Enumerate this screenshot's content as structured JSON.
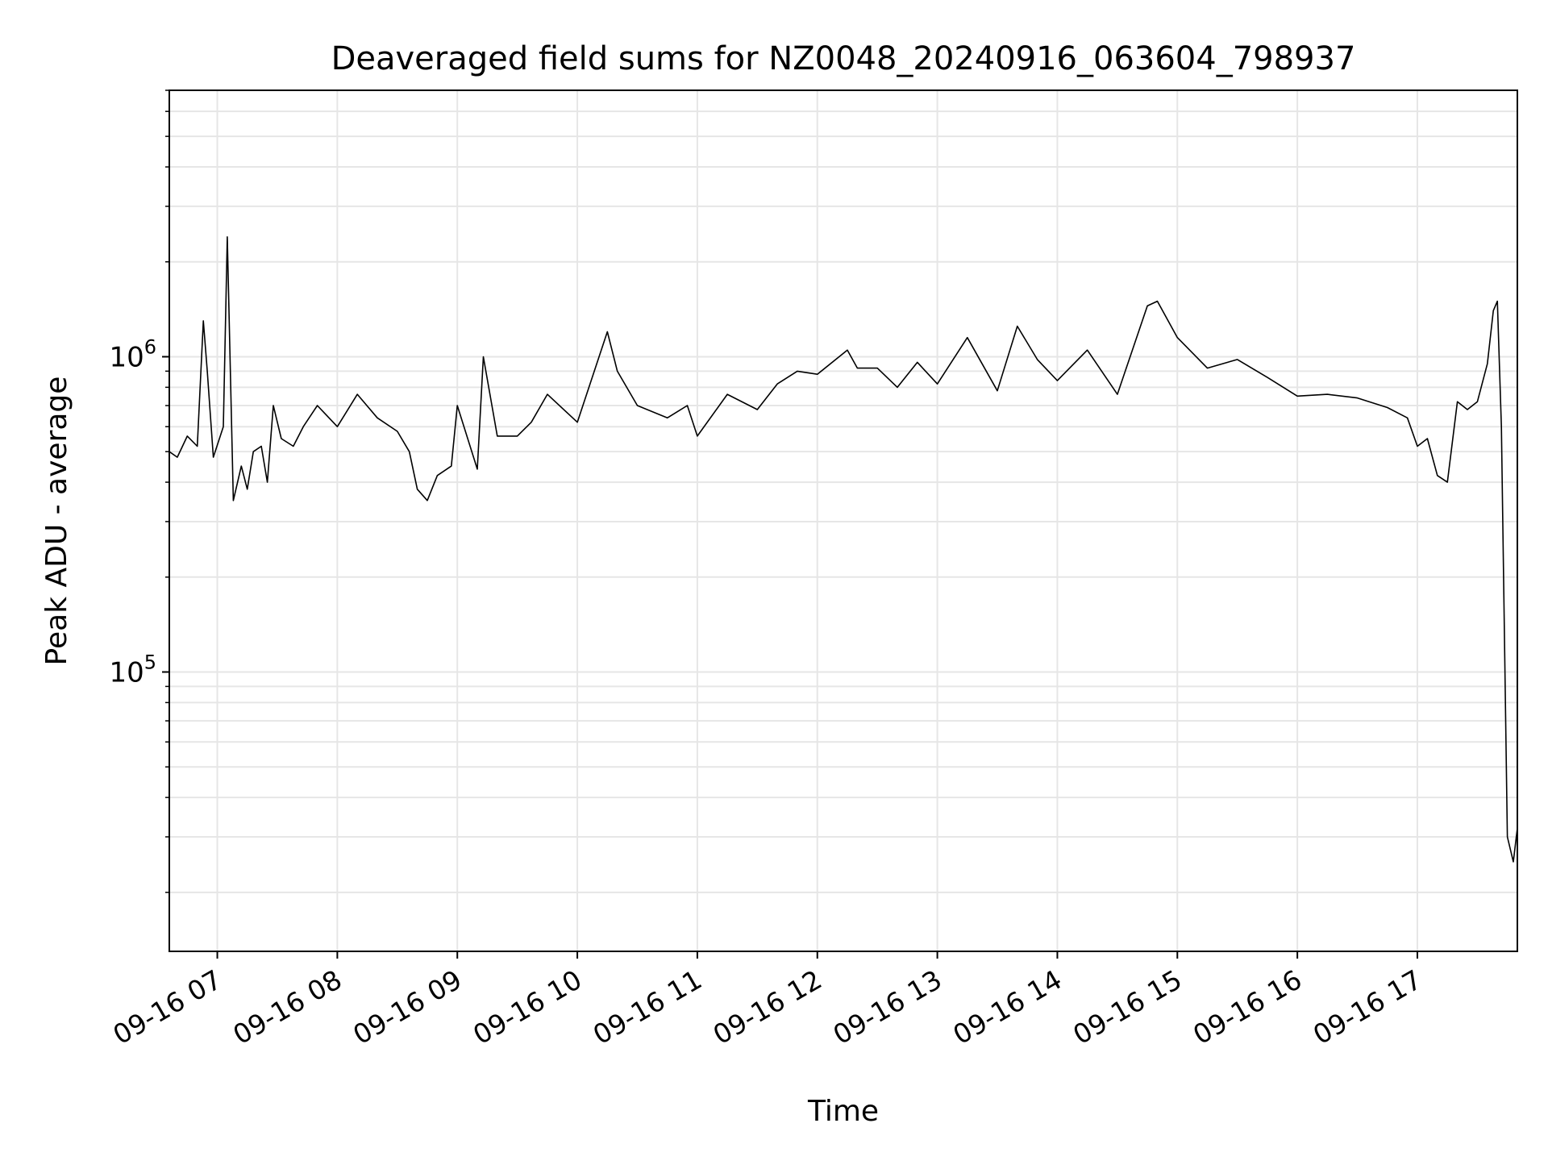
{
  "chart_data": {
    "type": "line",
    "title": "Deaveraged field sums for NZ0048_20240916_063604_798937",
    "xlabel": "Time",
    "ylabel": "Peak ADU - average",
    "yscale": "log",
    "xlim": [
      "2024-09-16 06:36",
      "2024-09-16 17:50"
    ],
    "ylim": [
      13000,
      7000000
    ],
    "xticks": [
      {
        "t": "2024-09-16 07:00",
        "label": "09-16 07"
      },
      {
        "t": "2024-09-16 08:00",
        "label": "09-16 08"
      },
      {
        "t": "2024-09-16 09:00",
        "label": "09-16 09"
      },
      {
        "t": "2024-09-16 10:00",
        "label": "09-16 10"
      },
      {
        "t": "2024-09-16 11:00",
        "label": "09-16 11"
      },
      {
        "t": "2024-09-16 12:00",
        "label": "09-16 12"
      },
      {
        "t": "2024-09-16 13:00",
        "label": "09-16 13"
      },
      {
        "t": "2024-09-16 14:00",
        "label": "09-16 14"
      },
      {
        "t": "2024-09-16 15:00",
        "label": "09-16 15"
      },
      {
        "t": "2024-09-16 16:00",
        "label": "09-16 16"
      },
      {
        "t": "2024-09-16 17:00",
        "label": "09-16 17"
      }
    ],
    "yticks": [
      {
        "value": 100000,
        "base": "10",
        "exp": "5"
      },
      {
        "value": 1000000,
        "base": "10",
        "exp": "6"
      }
    ],
    "grid": true,
    "minor_grid": true,
    "line_color": "#000000",
    "grid_color": "#e6e6e6",
    "series": [
      {
        "x": [
          "2024-09-16 06:36",
          "2024-09-16 06:40",
          "2024-09-16 06:45",
          "2024-09-16 06:50",
          "2024-09-16 06:53",
          "2024-09-16 06:55",
          "2024-09-16 06:58",
          "2024-09-16 07:03",
          "2024-09-16 07:05",
          "2024-09-16 07:08",
          "2024-09-16 07:12",
          "2024-09-16 07:15",
          "2024-09-16 07:18",
          "2024-09-16 07:22",
          "2024-09-16 07:25",
          "2024-09-16 07:28",
          "2024-09-16 07:32",
          "2024-09-16 07:38",
          "2024-09-16 07:43",
          "2024-09-16 07:50",
          "2024-09-16 08:00",
          "2024-09-16 08:10",
          "2024-09-16 08:20",
          "2024-09-16 08:30",
          "2024-09-16 08:36",
          "2024-09-16 08:40",
          "2024-09-16 08:45",
          "2024-09-16 08:50",
          "2024-09-16 08:57",
          "2024-09-16 09:00",
          "2024-09-16 09:10",
          "2024-09-16 09:13",
          "2024-09-16 09:20",
          "2024-09-16 09:30",
          "2024-09-16 09:37",
          "2024-09-16 09:45",
          "2024-09-16 10:00",
          "2024-09-16 10:15",
          "2024-09-16 10:20",
          "2024-09-16 10:30",
          "2024-09-16 10:45",
          "2024-09-16 10:55",
          "2024-09-16 11:00",
          "2024-09-16 11:15",
          "2024-09-16 11:30",
          "2024-09-16 11:40",
          "2024-09-16 11:50",
          "2024-09-16 12:00",
          "2024-09-16 12:15",
          "2024-09-16 12:20",
          "2024-09-16 12:30",
          "2024-09-16 12:40",
          "2024-09-16 12:50",
          "2024-09-16 13:00",
          "2024-09-16 13:15",
          "2024-09-16 13:30",
          "2024-09-16 13:40",
          "2024-09-16 13:50",
          "2024-09-16 14:00",
          "2024-09-16 14:15",
          "2024-09-16 14:30",
          "2024-09-16 14:45",
          "2024-09-16 14:50",
          "2024-09-16 15:00",
          "2024-09-16 15:15",
          "2024-09-16 15:30",
          "2024-09-16 15:45",
          "2024-09-16 16:00",
          "2024-09-16 16:15",
          "2024-09-16 16:30",
          "2024-09-16 16:45",
          "2024-09-16 16:55",
          "2024-09-16 17:00",
          "2024-09-16 17:05",
          "2024-09-16 17:10",
          "2024-09-16 17:15",
          "2024-09-16 17:20",
          "2024-09-16 17:25",
          "2024-09-16 17:30",
          "2024-09-16 17:35",
          "2024-09-16 17:38",
          "2024-09-16 17:40",
          "2024-09-16 17:42",
          "2024-09-16 17:45",
          "2024-09-16 17:48",
          "2024-09-16 17:50"
        ],
        "y": [
          500000,
          480000,
          560000,
          520000,
          1300000,
          900000,
          480000,
          600000,
          2400000,
          350000,
          450000,
          380000,
          500000,
          520000,
          400000,
          700000,
          550000,
          520000,
          600000,
          700000,
          600000,
          760000,
          640000,
          580000,
          500000,
          380000,
          350000,
          420000,
          450000,
          700000,
          440000,
          1000000,
          560000,
          560000,
          620000,
          760000,
          620000,
          1200000,
          900000,
          700000,
          640000,
          700000,
          560000,
          760000,
          680000,
          820000,
          900000,
          880000,
          1050000,
          920000,
          920000,
          800000,
          960000,
          820000,
          1150000,
          780000,
          1250000,
          980000,
          840000,
          1050000,
          760000,
          1450000,
          1500000,
          1150000,
          920000,
          980000,
          860000,
          750000,
          760000,
          740000,
          690000,
          640000,
          520000,
          550000,
          420000,
          400000,
          720000,
          680000,
          720000,
          950000,
          1400000,
          1500000,
          600000,
          30000,
          25000,
          32000
        ]
      }
    ]
  }
}
